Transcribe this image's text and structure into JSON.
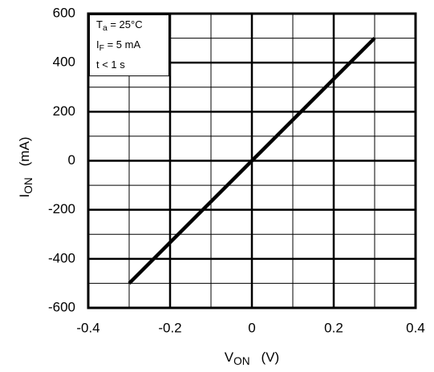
{
  "chart_data": {
    "type": "line",
    "annotations": [
      {
        "main": "T",
        "sub": "a",
        "rest": " = 25°C"
      },
      {
        "main": "I",
        "sub": "F",
        "rest": " = 5 mA"
      },
      {
        "main": "t < 1 s"
      }
    ],
    "xlabel": {
      "main": "V",
      "sub": "ON",
      "unit": "(V)"
    },
    "ylabel": {
      "main": "I",
      "sub": "ON",
      "unit": "(mA)"
    },
    "series": [
      {
        "color": "#000000",
        "x": [
          -0.3,
          0.3
        ],
        "values": [
          -500,
          500
        ]
      }
    ],
    "xlim": [
      -0.4,
      0.4
    ],
    "xticks": [
      -0.4,
      -0.2,
      0,
      0.2,
      0.4
    ],
    "ylim": [
      -600,
      600
    ],
    "yticks": [
      -600,
      -400,
      -200,
      0,
      200,
      400,
      600
    ],
    "grid": true,
    "minor_grid": true
  }
}
